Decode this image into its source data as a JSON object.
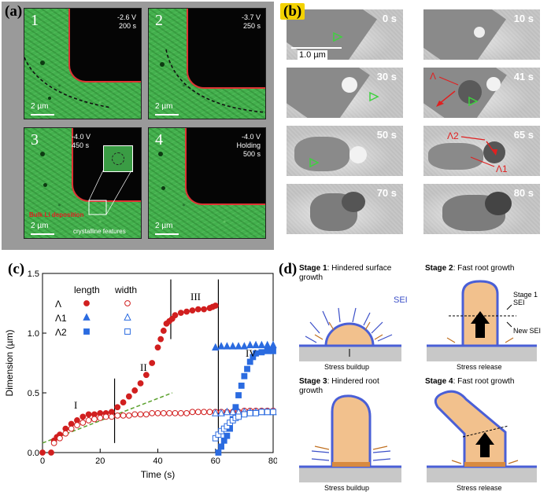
{
  "panel_a": {
    "label": "(a)",
    "frames": [
      {
        "num": "1",
        "v": "-2.6 V",
        "t": "200 s",
        "scale": "2 µm"
      },
      {
        "num": "2",
        "v": "-3.7 V",
        "t": "250 s",
        "scale": "2 µm"
      },
      {
        "num": "3",
        "v": "-4.0 V",
        "t": "450 s",
        "scale": "2 µm"
      },
      {
        "num": "4",
        "v": "-4.0 V",
        "t": "Holding",
        "t2": "500 s",
        "scale": "2 µm"
      }
    ],
    "bulk_label": "Bulk Li deposition",
    "crystal_label": "crystalline features",
    "colors": {
      "green": "#43b04d",
      "red_edge": "#d33333"
    }
  },
  "panel_b": {
    "label": "(b)",
    "scale": "1.0 µm",
    "frames": [
      "0 s",
      "10 s",
      "30 s",
      "41 s",
      "50 s",
      "65 s",
      "70 s",
      "80 s"
    ],
    "ann_lambda": "Λ",
    "ann_lambda2": "Λ2",
    "ann_lambda1": "Λ1"
  },
  "panel_c": {
    "label": "(c)",
    "legend_length": "length",
    "legend_width": "width",
    "legend_rows": [
      "Λ",
      "Λ1",
      "Λ2"
    ],
    "stages": [
      "I",
      "II",
      "III",
      "IV"
    ]
  },
  "chart_data": {
    "type": "scatter",
    "xlabel": "Time (s)",
    "ylabel": "Dimension (µm)",
    "xlim": [
      0,
      80
    ],
    "ylim": [
      0,
      1.5
    ],
    "xticks": [
      0,
      20,
      40,
      60,
      80
    ],
    "yticks": [
      0,
      0.5,
      1,
      1.5
    ],
    "series": [
      {
        "name": "Λ length",
        "color": "#d11f1f",
        "marker": "filled-circle",
        "x": [
          0,
          3,
          4,
          5,
          6,
          8,
          10,
          12,
          14,
          16,
          18,
          20,
          22,
          24,
          26,
          28,
          30,
          32,
          34,
          36,
          38,
          40,
          41,
          42,
          43,
          44,
          45,
          46,
          48,
          50,
          52,
          54,
          56,
          58,
          59,
          60
        ],
        "y": [
          0,
          0,
          0.1,
          0.13,
          0.15,
          0.2,
          0.24,
          0.27,
          0.3,
          0.32,
          0.32,
          0.33,
          0.33,
          0.34,
          0.38,
          0.42,
          0.47,
          0.52,
          0.58,
          0.65,
          0.75,
          0.88,
          0.95,
          1.02,
          1.08,
          1.1,
          1.12,
          1.15,
          1.17,
          1.18,
          1.19,
          1.2,
          1.2,
          1.21,
          1.22,
          1.23
        ]
      },
      {
        "name": "Λ width",
        "color": "#d11f1f",
        "marker": "open-circle",
        "x": [
          4,
          6,
          8,
          10,
          12,
          14,
          16,
          18,
          20,
          22,
          24,
          26,
          28,
          30,
          32,
          34,
          36,
          38,
          40,
          42,
          44,
          46,
          48,
          50,
          52,
          54,
          56,
          58,
          60,
          62,
          64,
          66,
          68,
          70,
          72,
          74,
          76,
          78,
          80
        ],
        "y": [
          0.08,
          0.12,
          0.16,
          0.2,
          0.23,
          0.25,
          0.27,
          0.28,
          0.29,
          0.3,
          0.3,
          0.31,
          0.31,
          0.31,
          0.32,
          0.32,
          0.32,
          0.33,
          0.33,
          0.33,
          0.33,
          0.33,
          0.33,
          0.33,
          0.34,
          0.34,
          0.34,
          0.34,
          0.34,
          0.34,
          0.34,
          0.34,
          0.34,
          0.35,
          0.35,
          0.35,
          0.35,
          0.35,
          0.35
        ]
      },
      {
        "name": "Λ1 length",
        "color": "#2b6be0",
        "marker": "filled-triangle",
        "x": [
          60,
          62,
          64,
          66,
          68,
          70,
          72,
          74,
          76,
          78,
          80
        ],
        "y": [
          0.88,
          0.89,
          0.89,
          0.89,
          0.89,
          0.89,
          0.9,
          0.9,
          0.9,
          0.9,
          0.9
        ]
      },
      {
        "name": "Λ1 width",
        "color": "#2b6be0",
        "marker": "open-triangle",
        "x": [
          60,
          62,
          64,
          66,
          68,
          70,
          72,
          74,
          76,
          78,
          80
        ],
        "y": [
          0.33,
          0.33,
          0.34,
          0.34,
          0.34,
          0.34,
          0.34,
          0.34,
          0.34,
          0.34,
          0.34
        ]
      },
      {
        "name": "Λ2 length",
        "color": "#2b6be0",
        "marker": "filled-square",
        "x": [
          61,
          62,
          63,
          64,
          65,
          66,
          67,
          68,
          69,
          70,
          71,
          72,
          73,
          74,
          76,
          78,
          80
        ],
        "y": [
          0.0,
          0.05,
          0.1,
          0.14,
          0.2,
          0.28,
          0.38,
          0.48,
          0.56,
          0.64,
          0.7,
          0.76,
          0.8,
          0.83,
          0.84,
          0.85,
          0.85
        ]
      },
      {
        "name": "Λ2 width",
        "color": "#2b6be0",
        "marker": "open-square",
        "x": [
          60,
          61,
          62,
          63,
          64,
          65,
          66,
          67,
          68,
          70,
          72,
          74,
          76,
          78,
          80
        ],
        "y": [
          0.12,
          0.15,
          0.18,
          0.2,
          0.22,
          0.25,
          0.27,
          0.29,
          0.3,
          0.32,
          0.33,
          0.33,
          0.34,
          0.34,
          0.34
        ]
      }
    ],
    "stage_lines_x": [
      25,
      44.5,
      61
    ],
    "fit_line": {
      "x": [
        0,
        45
      ],
      "y": [
        0.08,
        0.5
      ],
      "color": "#5aa02c"
    }
  },
  "panel_d": {
    "label": "(d)",
    "stages": [
      {
        "title": "Stage 1",
        "desc": "Hindered surface growth",
        "foot": "Stress buildup"
      },
      {
        "title": "Stage 2",
        "desc": "Fast root growth",
        "foot": "Stress release"
      },
      {
        "title": "Stage 3",
        "desc": "Hindered root growth",
        "foot": "Stress buildup"
      },
      {
        "title": "Stage 4",
        "desc": "Fast root growth",
        "foot": "Stress release"
      }
    ],
    "sei": "SEI",
    "stage1_sei": "Stage 1 SEI",
    "new_sei": "New SEI",
    "colors": {
      "body": "#f2c18d",
      "outline": "#4a5fd6",
      "substrate": "#c8c8c8"
    }
  }
}
